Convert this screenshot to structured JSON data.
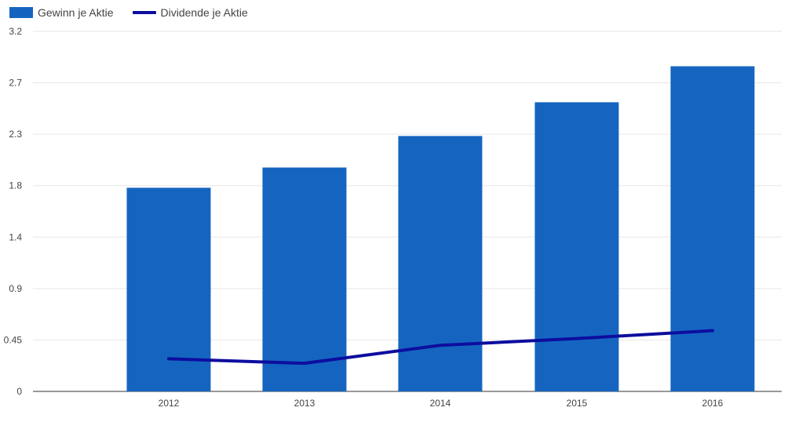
{
  "chart_data": {
    "type": "bar",
    "categories": [
      "2012",
      "2013",
      "2014",
      "2015",
      "2016"
    ],
    "series": [
      {
        "name": "Gewinn je Aktie",
        "type": "bar",
        "color": "#1565c0",
        "values": [
          1.81,
          1.99,
          2.27,
          2.57,
          2.89
        ]
      },
      {
        "name": "Dividende je Aktie",
        "type": "line",
        "color": "#0d0d9e",
        "values": [
          0.29,
          0.25,
          0.41,
          0.47,
          0.54
        ]
      }
    ],
    "yticks": [
      "0",
      "0.45",
      "0.9",
      "1.4",
      "1.8",
      "2.3",
      "2.7",
      "3.2"
    ],
    "ylim": [
      0,
      3.2
    ],
    "grid": true,
    "legend_position": "top-left"
  }
}
